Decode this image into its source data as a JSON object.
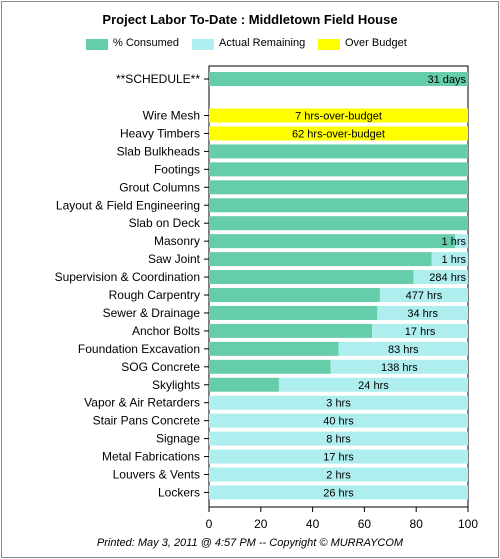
{
  "chart_data": {
    "type": "bar",
    "title": "Project Labor To-Date : Middletown Field House",
    "legend": [
      {
        "label": "% Consumed",
        "color": "#66CDAA"
      },
      {
        "label": "Actual Remaining",
        "color": "#AFEEEE"
      },
      {
        "label": "Over Budget",
        "color": "#FFFF00"
      }
    ],
    "xlim": [
      0,
      100
    ],
    "xticks": [
      "0",
      "20",
      "40",
      "60",
      "80",
      "100"
    ],
    "schedule": {
      "category": "**SCHEDULE**",
      "consumed": 100,
      "label": "31 days"
    },
    "categories": [
      "Wire Mesh",
      "Heavy Timbers",
      "Slab Bulkheads",
      "Footings",
      "Grout Columns",
      "Layout &  Field Engineering",
      "Slab on Deck",
      "Masonry",
      "Saw Joint",
      "Supervision & Coordination",
      "Rough Carpentry",
      "Sewer & Drainage",
      "Anchor Bolts",
      "Foundation Excavation",
      "SOG Concrete",
      "Skylights",
      "Vapor & Air Retarders",
      "Stair Pans Concrete",
      "Signage",
      "Metal Fabrications",
      "Louvers & Vents",
      "Lockers"
    ],
    "series": [
      {
        "name": "% Consumed",
        "values": [
          0,
          0,
          100,
          100,
          100,
          100,
          100,
          95,
          86,
          79,
          66,
          65,
          63,
          50,
          47,
          27,
          0,
          0,
          0,
          0,
          0,
          0
        ]
      },
      {
        "name": "Actual Remaining",
        "values": [
          0,
          0,
          0,
          0,
          0,
          0,
          0,
          5,
          14,
          21,
          34,
          35,
          37,
          50,
          53,
          73,
          100,
          100,
          100,
          100,
          100,
          100
        ]
      },
      {
        "name": "Over Budget",
        "values": [
          100,
          100,
          0,
          0,
          0,
          0,
          0,
          0,
          0,
          0,
          0,
          0,
          0,
          0,
          0,
          0,
          0,
          0,
          0,
          0,
          0,
          0
        ]
      }
    ],
    "bar_labels": [
      "7 hrs-over-budget",
      "62 hrs-over-budget",
      "",
      "",
      "",
      "",
      "",
      "1 hrs",
      "1 hrs",
      "284 hrs",
      "477 hrs",
      "34 hrs",
      "17 hrs",
      "83 hrs",
      "138 hrs",
      "24 hrs",
      "3 hrs",
      "40 hrs",
      "8 hrs",
      "17 hrs",
      "2 hrs",
      "26 hrs"
    ]
  },
  "footer": "Printed: May 3, 2011 @ 4:57 PM -- Copyright © MURRAYCOM"
}
